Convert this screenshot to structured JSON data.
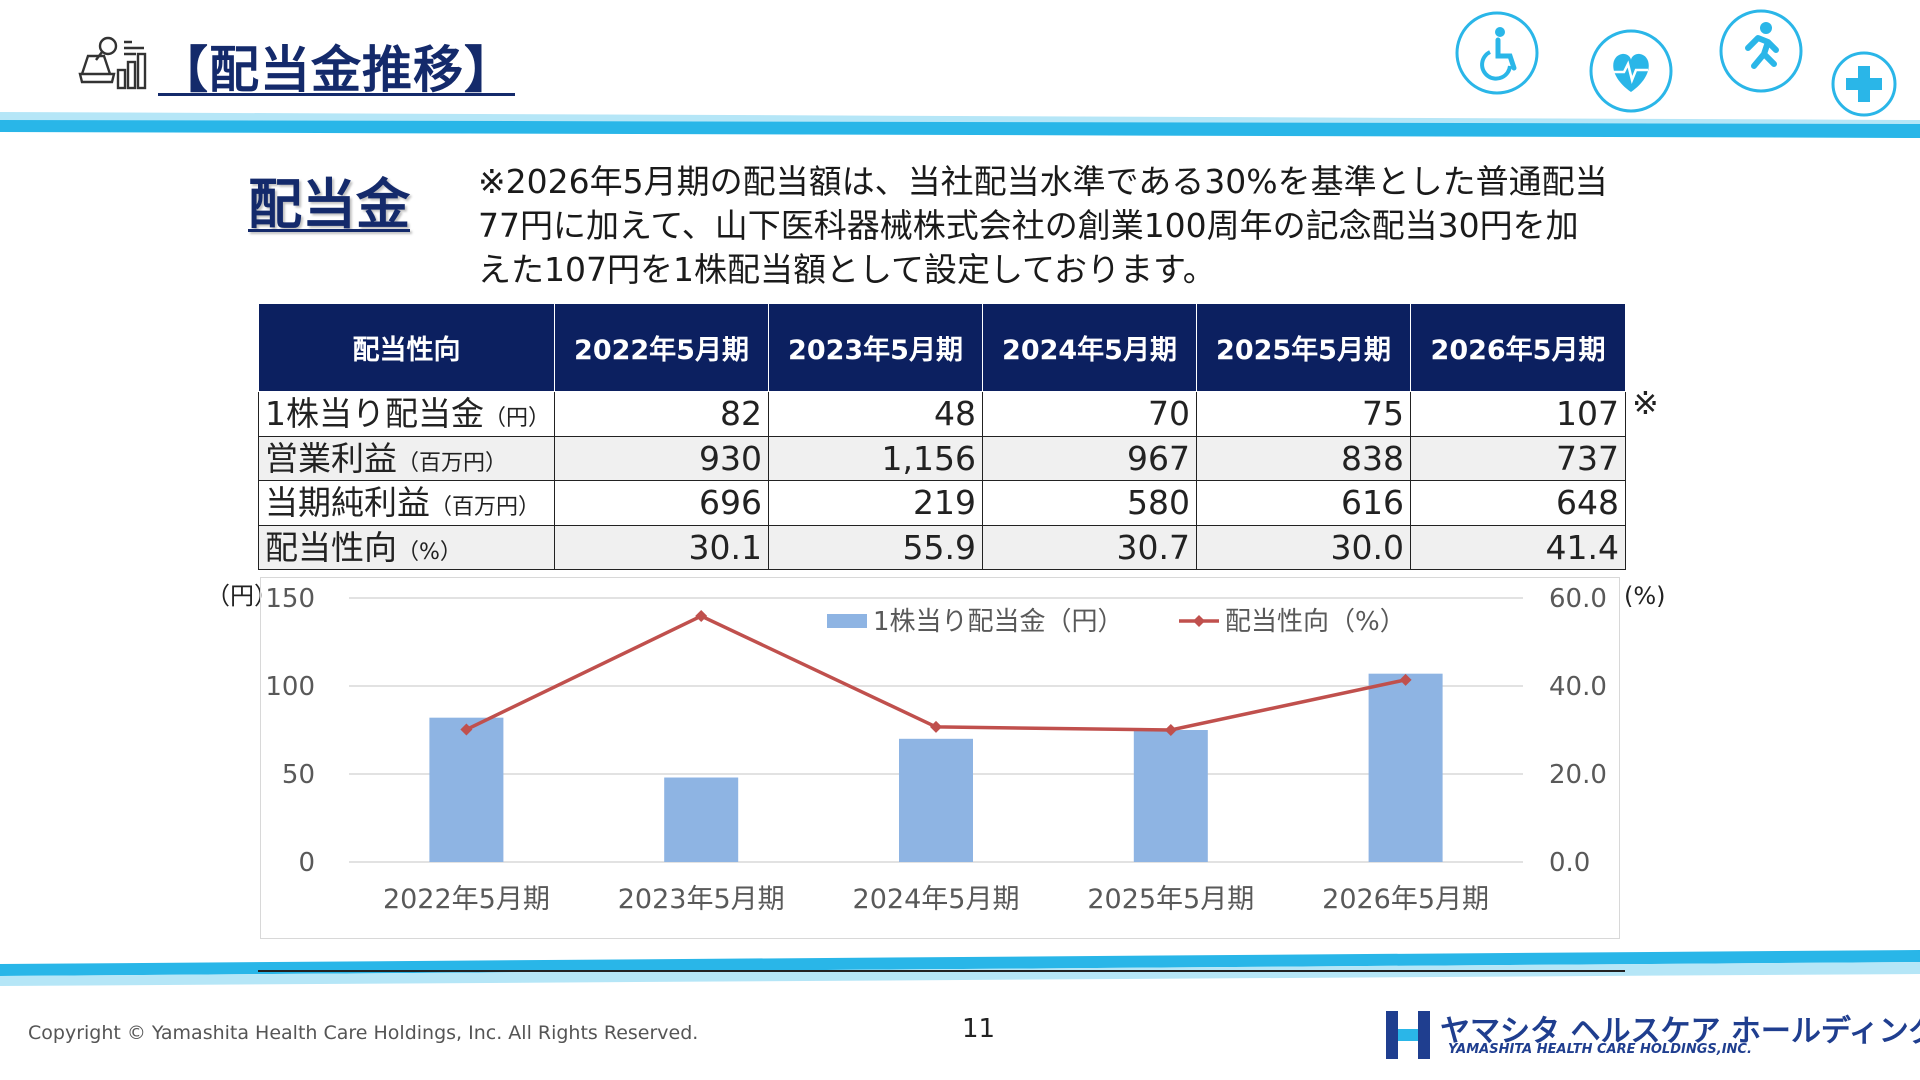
{
  "header": {
    "title": "【配当金推移】",
    "icons": [
      "analytics-icon",
      "wheelchair-icon",
      "heart-pulse-icon",
      "running-person-icon",
      "medical-cross-icon"
    ]
  },
  "section_title": "配当金",
  "note_lines": [
    "※2026年5月期の配当額は、当社配当水準である30%を基準とした普通配当",
    "77円に加えて、山下医科器械株式会社の創業100周年の記念配当30円を加",
    "えた107円を1株配当額として設定しております。"
  ],
  "table": {
    "header": [
      "配当性向",
      "2022年5月期",
      "2023年5月期",
      "2024年5月期",
      "2025年5月期",
      "2026年5月期"
    ],
    "rows": [
      {
        "label": "1株当り配当金",
        "unit": "（円）",
        "values": [
          "82",
          "48",
          "70",
          "75",
          "107"
        ]
      },
      {
        "label": "営業利益",
        "unit": "（百万円）",
        "values": [
          "930",
          "1,156",
          "967",
          "838",
          "737"
        ]
      },
      {
        "label": "当期純利益",
        "unit": "（百万円）",
        "values": [
          "696",
          "219",
          "580",
          "616",
          "648"
        ]
      },
      {
        "label": "配当性向",
        "unit": "（%）",
        "values": [
          "30.1",
          "55.9",
          "30.7",
          "30.0",
          "41.4"
        ]
      }
    ],
    "mark": "※"
  },
  "chart_data": {
    "type": "bar",
    "categories": [
      "2022年5月期",
      "2023年5月期",
      "2024年5月期",
      "2025年5月期",
      "2026年5月期"
    ],
    "series": [
      {
        "name": "1株当り配当金（円）",
        "type": "bar",
        "axis": "left",
        "values": [
          82,
          48,
          70,
          75,
          107
        ],
        "color": "#8eb4e3"
      },
      {
        "name": "配当性向（%）",
        "type": "line",
        "axis": "right",
        "values": [
          30.1,
          55.9,
          30.7,
          30.0,
          41.4
        ],
        "color": "#c0504d"
      }
    ],
    "y_left": {
      "unit": "（円）",
      "ylim": [
        0,
        150
      ],
      "ticks": [
        "0",
        "50",
        "100",
        "150"
      ]
    },
    "y_right": {
      "unit": "(%)",
      "ylim": [
        0,
        60
      ],
      "ticks": [
        "0.0",
        "20.0",
        "40.0",
        "60.0"
      ]
    },
    "grid": true,
    "legend": "top"
  },
  "footer": {
    "copyright": "Copyright © Yamashita Health Care Holdings, Inc. All Rights Reserved.",
    "page_number": "11",
    "logo_jp": "ヤマシタ ヘルスケア ホールディングス",
    "logo_en": "YAMASHITA HEALTH CARE HOLDINGS,INC."
  },
  "colors": {
    "navy": "#0c2060",
    "title_navy": "#142a6b",
    "band_cyan": "#29b6e8",
    "band_light": "#b5e6f7",
    "bar_blue": "#8eb4e3",
    "line_red": "#c0504d",
    "logo_blue": "#1f3e8f"
  }
}
